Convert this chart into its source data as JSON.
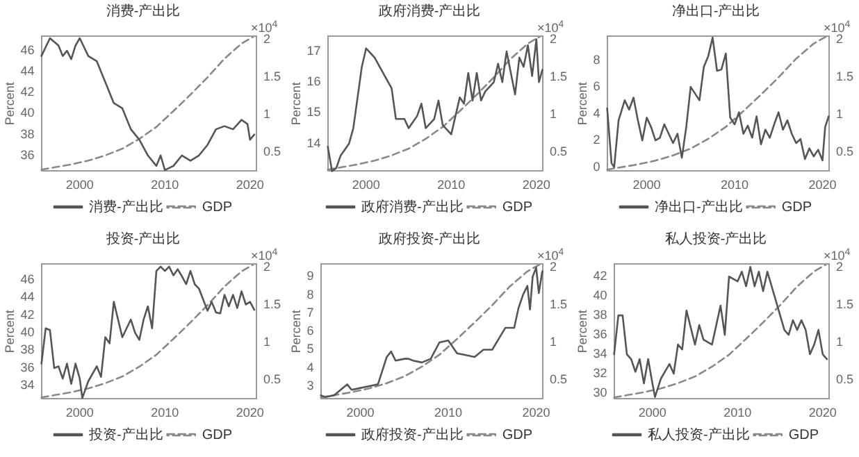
{
  "chart_data": [
    {
      "type": "line",
      "title": "消费-产出比",
      "ylabel": "Percent",
      "y2label": "×10$^{4}$",
      "legend": "bottom",
      "xlim": [
        1995.5,
        2020.75
      ],
      "xticks": [
        2000,
        2010,
        2020
      ],
      "ylim": [
        34.5,
        47.4
      ],
      "yticks": [
        36,
        38,
        40,
        42,
        44,
        46
      ],
      "y2lim": [
        0.25,
        2.05
      ],
      "y2ticks": [
        0.5,
        1,
        1.5,
        2
      ],
      "series": [
        {
          "name": "消费-产出比",
          "color": "#555555",
          "line_style": "solid",
          "x": [
            1995.5,
            1996.5,
            1997.5,
            1998,
            1998.5,
            1999,
            1999.5,
            2000,
            2001,
            2002,
            2003,
            2004,
            2005,
            2006,
            2007,
            2008,
            2009,
            2009.5,
            2010,
            2011,
            2012,
            2013,
            2014,
            2015,
            2016,
            2017,
            2018,
            2019,
            2019.7,
            2020,
            2020.5
          ],
          "values": [
            45.5,
            47.2,
            46.5,
            45.5,
            46,
            45.2,
            46.5,
            47.2,
            45.5,
            45,
            43,
            41,
            40.5,
            38.5,
            37.5,
            36,
            35,
            36,
            34.6,
            35,
            36,
            35.5,
            36,
            37,
            38.5,
            38.8,
            38.5,
            39.4,
            39,
            37.5,
            38
          ]
        },
        {
          "name": "GDP",
          "color": "#888888",
          "line_style": "dashed",
          "axis": "y2",
          "x": [
            1995.5,
            1997,
            1999,
            2001,
            2003,
            2005,
            2007,
            2009,
            2011,
            2013,
            2015,
            2017,
            2019,
            2020.5
          ],
          "values": [
            0.27,
            0.3,
            0.34,
            0.39,
            0.46,
            0.55,
            0.68,
            0.84,
            1.05,
            1.27,
            1.5,
            1.75,
            1.95,
            2.05
          ]
        }
      ]
    },
    {
      "type": "line",
      "title": "政府消费-产出比",
      "ylabel": "Percent",
      "y2label": "×10$^{4}$",
      "legend": "bottom",
      "xlim": [
        1995.5,
        2020.75
      ],
      "xticks": [
        2000,
        2010,
        2020
      ],
      "ylim": [
        13.1,
        17.5
      ],
      "yticks": [
        14,
        15,
        16,
        17
      ],
      "y2lim": [
        0.25,
        2.05
      ],
      "y2ticks": [
        0.5,
        1,
        1.5,
        2
      ],
      "series": [
        {
          "name": "政府消费-产出比",
          "color": "#555555",
          "line_style": "solid",
          "x": [
            1995.5,
            1996,
            1996.5,
            1997,
            1998,
            1998.5,
            1999,
            1999.5,
            2000,
            2001,
            2002,
            2003,
            2003.5,
            2004.5,
            2005,
            2006,
            2006.5,
            2007,
            2008,
            2008.5,
            2009,
            2010,
            2011,
            2011.5,
            2012,
            2012.5,
            2013,
            2013.5,
            2014,
            2015,
            2015.5,
            2016,
            2016.5,
            2017,
            2017.5,
            2018,
            2018.5,
            2019,
            2019.5,
            2020,
            2020.3,
            2020.7
          ],
          "values": [
            13.9,
            13.1,
            13.2,
            13.6,
            14,
            14.5,
            15.5,
            16.5,
            17.1,
            16.8,
            16.3,
            15.8,
            14.8,
            14.8,
            14.5,
            14.9,
            15.3,
            14.5,
            14.8,
            15.4,
            14.6,
            14.3,
            15.5,
            15.3,
            16.3,
            15.4,
            16.3,
            15.4,
            15.7,
            16,
            16.6,
            16,
            17,
            16.3,
            15.6,
            16.8,
            16.5,
            17.2,
            16.2,
            17.4,
            16,
            16.4
          ]
        },
        {
          "name": "GDP",
          "color": "#888888",
          "line_style": "dashed",
          "axis": "y2",
          "x": [
            1995.5,
            1997,
            1999,
            2001,
            2003,
            2005,
            2007,
            2009,
            2011,
            2013,
            2015,
            2017,
            2019,
            2020.5
          ],
          "values": [
            0.27,
            0.3,
            0.34,
            0.39,
            0.46,
            0.55,
            0.68,
            0.84,
            1.05,
            1.27,
            1.5,
            1.75,
            1.95,
            2.05
          ]
        }
      ]
    },
    {
      "type": "line",
      "title": "净出口-产出比",
      "ylabel": "Percent",
      "y2label": "×10$^{4}$",
      "legend": "bottom",
      "xlim": [
        1995.5,
        2020.75
      ],
      "xticks": [
        2000,
        2010,
        2020
      ],
      "ylim": [
        -0.3,
        9.8
      ],
      "yticks": [
        0,
        2,
        4,
        6,
        8
      ],
      "y2lim": [
        0.25,
        2.05
      ],
      "y2ticks": [
        0.5,
        1,
        1.5,
        2
      ],
      "series": [
        {
          "name": "净出口-产出比",
          "color": "#555555",
          "line_style": "solid",
          "x": [
            1995.5,
            1996,
            1996.3,
            1996.8,
            1997.5,
            1998,
            1998.5,
            1999,
            1999.5,
            2000,
            2000.5,
            2001,
            2001.5,
            2002,
            2002.5,
            2003,
            2003.5,
            2004,
            2004.5,
            2005,
            2006,
            2006.5,
            2007,
            2007.5,
            2008,
            2008.5,
            2009,
            2009.5,
            2010,
            2010.5,
            2011,
            2011.5,
            2012,
            2012.5,
            2013,
            2013.5,
            2014,
            2014.5,
            2015,
            2015.5,
            2016,
            2016.5,
            2017,
            2017.5,
            2018,
            2018.5,
            2019,
            2019.5,
            2020,
            2020.3,
            2020.7
          ],
          "values": [
            4.4,
            0.3,
            0,
            3.5,
            5,
            4.3,
            5.2,
            3.5,
            2,
            3.7,
            3,
            2,
            2.2,
            3.2,
            2.5,
            1.8,
            2.5,
            0.7,
            3,
            6,
            5,
            7.5,
            8.3,
            9.7,
            7.2,
            7.3,
            8.5,
            3.7,
            3.2,
            4.1,
            2.5,
            3.1,
            2.2,
            3.8,
            1.7,
            2.8,
            2.2,
            3.2,
            4.1,
            2.8,
            3.5,
            2.5,
            1.8,
            2.1,
            0.6,
            1.4,
            0.8,
            1.3,
            0.5,
            3,
            3.8
          ]
        },
        {
          "name": "GDP",
          "color": "#888888",
          "line_style": "dashed",
          "axis": "y2",
          "x": [
            1995.5,
            1997,
            1999,
            2001,
            2003,
            2005,
            2007,
            2009,
            2011,
            2013,
            2015,
            2017,
            2019,
            2020.5
          ],
          "values": [
            0.27,
            0.3,
            0.34,
            0.39,
            0.46,
            0.55,
            0.68,
            0.84,
            1.05,
            1.27,
            1.5,
            1.75,
            1.95,
            2.05
          ]
        }
      ]
    },
    {
      "type": "line",
      "title": "投资-产出比",
      "ylabel": "Percent",
      "y2label": "×10$^{4}$",
      "legend": "bottom",
      "xlim": [
        1995.5,
        2020.75
      ],
      "xticks": [
        2000,
        2010,
        2020
      ],
      "ylim": [
        32.5,
        47.8
      ],
      "yticks": [
        34,
        36,
        38,
        40,
        42,
        44,
        46
      ],
      "y2lim": [
        0.25,
        2.05
      ],
      "y2ticks": [
        0.5,
        1,
        1.5,
        2
      ],
      "series": [
        {
          "name": "投资-产出比",
          "color": "#555555",
          "line_style": "solid",
          "x": [
            1995.5,
            1996,
            1996.5,
            1997,
            1997.5,
            1998,
            1998.5,
            1999,
            1999.5,
            2000,
            2000.3,
            2001,
            2002,
            2002.5,
            2003,
            2003.5,
            2004,
            2005,
            2005.5,
            2006,
            2006.5,
            2007,
            2007.5,
            2008,
            2008.5,
            2009,
            2009.5,
            2010,
            2010.5,
            2011,
            2011.5,
            2012,
            2012.5,
            2013,
            2013.5,
            2014,
            2015,
            2015.5,
            2016,
            2016.5,
            2017,
            2017.5,
            2018,
            2018.5,
            2019,
            2019.5,
            2020,
            2020.5
          ],
          "values": [
            36.5,
            40.5,
            40.3,
            36,
            36.2,
            34.8,
            36.5,
            34.2,
            36.5,
            34.8,
            32.6,
            34.5,
            36.2,
            35,
            39.5,
            38.8,
            43.5,
            39.5,
            40.5,
            41.5,
            40,
            39.2,
            41.5,
            43,
            40.5,
            47,
            47.5,
            47,
            47.5,
            46.5,
            47.2,
            46.4,
            45.5,
            47,
            45.5,
            45,
            42.5,
            43.5,
            42.3,
            42.2,
            44.3,
            43,
            44.3,
            42.8,
            44.7,
            43.2,
            43.5,
            42.6
          ]
        },
        {
          "name": "GDP",
          "color": "#888888",
          "line_style": "dashed",
          "axis": "y2",
          "x": [
            1995.5,
            1997,
            1999,
            2001,
            2003,
            2005,
            2007,
            2009,
            2011,
            2013,
            2015,
            2017,
            2019,
            2020.5
          ],
          "values": [
            0.27,
            0.3,
            0.34,
            0.39,
            0.46,
            0.55,
            0.68,
            0.84,
            1.05,
            1.27,
            1.5,
            1.75,
            1.95,
            2.05
          ]
        }
      ]
    },
    {
      "type": "line",
      "title": "政府投资-产出比",
      "ylabel": "Percent",
      "y2label": "×10$^{4}$",
      "legend": "bottom",
      "xlim": [
        1995.5,
        2020.75
      ],
      "xticks": [
        2000,
        2010,
        2020
      ],
      "ylim": [
        2.3,
        9.7
      ],
      "yticks": [
        3,
        4,
        5,
        6,
        7,
        8,
        9
      ],
      "y2lim": [
        0.25,
        2.05
      ],
      "y2ticks": [
        0.5,
        1,
        1.5,
        2
      ],
      "series": [
        {
          "name": "政府投资-产出比",
          "color": "#555555",
          "line_style": "solid",
          "x": [
            1995.5,
            1996,
            1997,
            1998,
            1998.5,
            1999,
            2000,
            2001,
            2002,
            2003,
            2003.5,
            2004,
            2005,
            2005.5,
            2006,
            2007,
            2008,
            2009,
            2010,
            2011,
            2012,
            2013,
            2014,
            2015,
            2016,
            2016.5,
            2017.5,
            2018,
            2018.5,
            2019,
            2019.3,
            2019.6,
            2020,
            2020.3,
            2020.7
          ],
          "values": [
            2.5,
            2.4,
            2.5,
            2.9,
            3.1,
            2.8,
            2.9,
            3,
            3.1,
            4.6,
            4.9,
            4.4,
            4.5,
            4.5,
            4.4,
            4.3,
            4.5,
            5.4,
            5.5,
            4.8,
            4.7,
            4.6,
            5,
            5,
            5.8,
            6.2,
            6.2,
            7.3,
            8,
            8.5,
            7.2,
            9,
            9.5,
            8.1,
            9.3
          ]
        },
        {
          "name": "GDP",
          "color": "#888888",
          "line_style": "dashed",
          "axis": "y2",
          "x": [
            1995.5,
            1997,
            1999,
            2001,
            2003,
            2005,
            2007,
            2009,
            2011,
            2013,
            2015,
            2017,
            2019,
            2020.5
          ],
          "values": [
            0.27,
            0.3,
            0.34,
            0.39,
            0.46,
            0.55,
            0.68,
            0.84,
            1.05,
            1.27,
            1.5,
            1.75,
            1.95,
            2.05
          ]
        }
      ]
    },
    {
      "type": "line",
      "title": "私人投资-产出比",
      "ylabel": "Percent",
      "y2label": "×10$^{4}$",
      "legend": "bottom",
      "xlim": [
        1995.5,
        2020.75
      ],
      "xticks": [
        2000,
        2010,
        2020
      ],
      "ylim": [
        29.4,
        43.3
      ],
      "yticks": [
        30,
        32,
        34,
        36,
        38,
        40,
        42
      ],
      "y2lim": [
        0.25,
        2.05
      ],
      "y2ticks": [
        0.5,
        1,
        1.5,
        2
      ],
      "series": [
        {
          "name": "私人投资-产出比",
          "color": "#555555",
          "line_style": "solid",
          "x": [
            1995.5,
            1996,
            1996.5,
            1997,
            1997.5,
            1998,
            1998.5,
            1999,
            1999.5,
            2000,
            2000.3,
            2001,
            2002,
            2002.5,
            2003,
            2003.5,
            2004,
            2005,
            2005.5,
            2006,
            2007,
            2008,
            2008.5,
            2009,
            2010,
            2010.5,
            2011,
            2011.5,
            2012,
            2012.5,
            2013,
            2013.5,
            2014,
            2015,
            2015.5,
            2016,
            2016.5,
            2017,
            2017.5,
            2018,
            2018.5,
            2019,
            2019.5,
            2020,
            2020.5
          ],
          "values": [
            34,
            38,
            38,
            34,
            33.5,
            32.2,
            33.5,
            31,
            33.5,
            31,
            29.6,
            31.5,
            33,
            32,
            35,
            34.5,
            38.5,
            35,
            37,
            35.5,
            35,
            39,
            36,
            42,
            41.5,
            42.5,
            41,
            43,
            41,
            42.5,
            40.5,
            42.5,
            41,
            38,
            36.5,
            36,
            37.5,
            36.5,
            37.5,
            36.5,
            34,
            35,
            36.5,
            34,
            33.5
          ]
        },
        {
          "name": "GDP",
          "color": "#888888",
          "line_style": "dashed",
          "axis": "y2",
          "x": [
            1995.5,
            1997,
            1999,
            2001,
            2003,
            2005,
            2007,
            2009,
            2011,
            2013,
            2015,
            2017,
            2019,
            2020.5
          ],
          "values": [
            0.27,
            0.3,
            0.34,
            0.39,
            0.46,
            0.55,
            0.68,
            0.84,
            1.05,
            1.27,
            1.5,
            1.75,
            1.95,
            2.05
          ]
        }
      ]
    }
  ]
}
